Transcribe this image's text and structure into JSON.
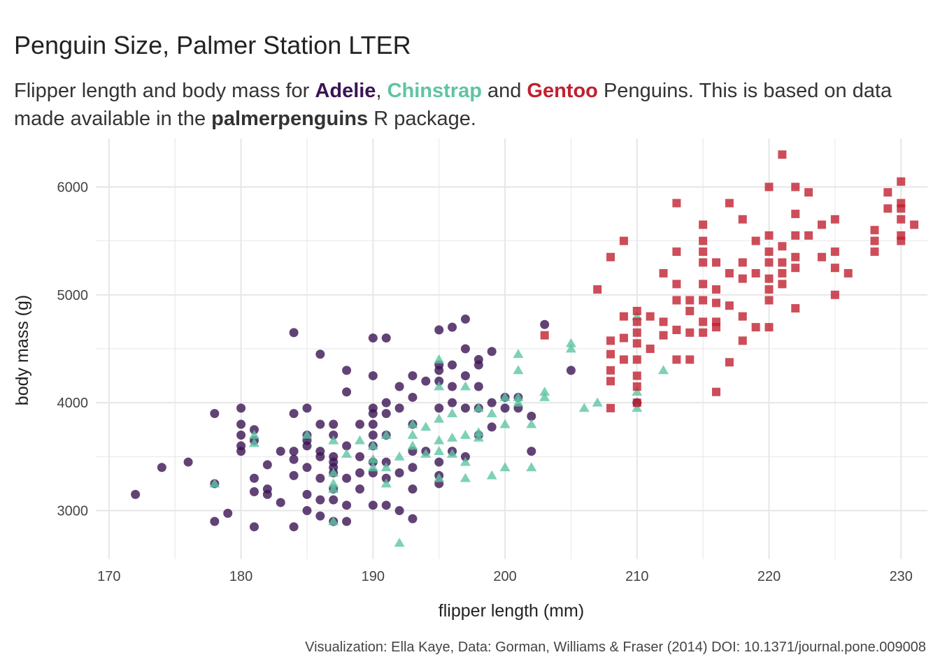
{
  "title": "Penguin Size, Palmer Station LTER",
  "subtitle": {
    "part1": "Flipper length and body mass for ",
    "adelie": "Adelie",
    "comma": ", ",
    "chinstrap": "Chinstrap",
    "and": " and ",
    "gentoo": "Gentoo",
    "part2": " Penguins. This is based on data made available in the ",
    "package": "palmerpenguins",
    "part3": " R package."
  },
  "caption": "Visualization: Ella Kaye, Data: Gorman, Williams & Fraser (2014) DOI: 10.1371/journal.pone.009008",
  "colors": {
    "Adelie": "#3b1454",
    "Chinstrap": "#5ec4a4",
    "Gentoo": "#c1202f",
    "grid": "#e6e6e6"
  },
  "chart_data": {
    "type": "scatter",
    "title": "Penguin Size, Palmer Station LTER",
    "xlabel": "flipper length (mm)",
    "ylabel": "body mass (g)",
    "xlim": [
      169,
      232
    ],
    "ylim": [
      2550,
      6450
    ],
    "xticks": [
      170,
      180,
      190,
      200,
      210,
      220,
      230
    ],
    "yticks": [
      3000,
      4000,
      5000,
      6000
    ],
    "grid": true,
    "legend": "none (species named in subtitle)",
    "series": [
      {
        "name": "Adelie",
        "marker": "circle",
        "points": [
          [
            172,
            3150
          ],
          [
            174,
            3400
          ],
          [
            176,
            3450
          ],
          [
            178,
            3900
          ],
          [
            178,
            3250
          ],
          [
            178,
            2900
          ],
          [
            179,
            2975
          ],
          [
            180,
            3950
          ],
          [
            180,
            3800
          ],
          [
            180,
            3700
          ],
          [
            180,
            3600
          ],
          [
            180,
            3550
          ],
          [
            181,
            3750
          ],
          [
            181,
            3650
          ],
          [
            181,
            3300
          ],
          [
            181,
            3175
          ],
          [
            181,
            2850
          ],
          [
            182,
            3425
          ],
          [
            182,
            3200
          ],
          [
            182,
            3150
          ],
          [
            183,
            3550
          ],
          [
            183,
            3075
          ],
          [
            184,
            4650
          ],
          [
            184,
            3900
          ],
          [
            184,
            3550
          ],
          [
            184,
            3475
          ],
          [
            184,
            3325
          ],
          [
            184,
            2850
          ],
          [
            185,
            3950
          ],
          [
            185,
            3700
          ],
          [
            185,
            3650
          ],
          [
            185,
            3600
          ],
          [
            185,
            3400
          ],
          [
            185,
            3150
          ],
          [
            185,
            3000
          ],
          [
            186,
            4450
          ],
          [
            186,
            3800
          ],
          [
            186,
            3550
          ],
          [
            186,
            3500
          ],
          [
            186,
            3300
          ],
          [
            186,
            3100
          ],
          [
            186,
            2950
          ],
          [
            187,
            3800
          ],
          [
            187,
            3700
          ],
          [
            187,
            3500
          ],
          [
            187,
            3450
          ],
          [
            187,
            3400
          ],
          [
            187,
            3350
          ],
          [
            187,
            3200
          ],
          [
            187,
            3100
          ],
          [
            187,
            2900
          ],
          [
            188,
            4300
          ],
          [
            188,
            4100
          ],
          [
            188,
            3600
          ],
          [
            188,
            3300
          ],
          [
            188,
            3050
          ],
          [
            188,
            2900
          ],
          [
            189,
            3800
          ],
          [
            189,
            3500
          ],
          [
            189,
            3350
          ],
          [
            189,
            3200
          ],
          [
            190,
            4600
          ],
          [
            190,
            4250
          ],
          [
            190,
            3950
          ],
          [
            190,
            3900
          ],
          [
            190,
            3800
          ],
          [
            190,
            3700
          ],
          [
            190,
            3600
          ],
          [
            190,
            3450
          ],
          [
            190,
            3350
          ],
          [
            190,
            3050
          ],
          [
            191,
            4600
          ],
          [
            191,
            4000
          ],
          [
            191,
            3900
          ],
          [
            191,
            3700
          ],
          [
            191,
            3450
          ],
          [
            191,
            3300
          ],
          [
            191,
            3050
          ],
          [
            192,
            4150
          ],
          [
            192,
            3950
          ],
          [
            192,
            3350
          ],
          [
            192,
            3000
          ],
          [
            193,
            4250
          ],
          [
            193,
            4050
          ],
          [
            193,
            3800
          ],
          [
            193,
            3550
          ],
          [
            193,
            3400
          ],
          [
            193,
            3200
          ],
          [
            193,
            2925
          ],
          [
            194,
            3550
          ],
          [
            194,
            4200
          ],
          [
            195,
            4675
          ],
          [
            195,
            4300
          ],
          [
            195,
            4350
          ],
          [
            195,
            4200
          ],
          [
            195,
            3950
          ],
          [
            195,
            3450
          ],
          [
            195,
            3325
          ],
          [
            195,
            3250
          ],
          [
            196,
            4700
          ],
          [
            196,
            4350
          ],
          [
            196,
            4150
          ],
          [
            196,
            4000
          ],
          [
            196,
            3550
          ],
          [
            197,
            4775
          ],
          [
            197,
            4500
          ],
          [
            197,
            4250
          ],
          [
            197,
            3950
          ],
          [
            197,
            3500
          ],
          [
            198,
            4400
          ],
          [
            198,
            4350
          ],
          [
            198,
            4150
          ],
          [
            198,
            3950
          ],
          [
            198,
            3700
          ],
          [
            199,
            4475
          ],
          [
            199,
            3775
          ],
          [
            199,
            4000
          ],
          [
            200,
            4050
          ],
          [
            200,
            3950
          ],
          [
            201,
            4050
          ],
          [
            201,
            3950
          ],
          [
            202,
            3875
          ],
          [
            202,
            3550
          ],
          [
            203,
            4725
          ],
          [
            205,
            4300
          ],
          [
            210,
            4000
          ]
        ]
      },
      {
        "name": "Chinstrap",
        "marker": "triangle",
        "points": [
          [
            178,
            3250
          ],
          [
            181,
            3700
          ],
          [
            181,
            3625
          ],
          [
            185,
            3700
          ],
          [
            187,
            3650
          ],
          [
            187,
            3350
          ],
          [
            187,
            3200
          ],
          [
            187,
            3250
          ],
          [
            187,
            2900
          ],
          [
            188,
            3525
          ],
          [
            189,
            3650
          ],
          [
            190,
            3600
          ],
          [
            190,
            3475
          ],
          [
            190,
            3400
          ],
          [
            191,
            3700
          ],
          [
            191,
            3400
          ],
          [
            191,
            3250
          ],
          [
            192,
            3500
          ],
          [
            192,
            2700
          ],
          [
            193,
            3800
          ],
          [
            193,
            3700
          ],
          [
            193,
            3600
          ],
          [
            194,
            3775
          ],
          [
            194,
            3525
          ],
          [
            195,
            4400
          ],
          [
            195,
            4150
          ],
          [
            195,
            3850
          ],
          [
            195,
            3650
          ],
          [
            195,
            3550
          ],
          [
            195,
            3300
          ],
          [
            196,
            3900
          ],
          [
            196,
            3675
          ],
          [
            196,
            3525
          ],
          [
            197,
            4150
          ],
          [
            197,
            3700
          ],
          [
            197,
            3450
          ],
          [
            197,
            3300
          ],
          [
            198,
            3950
          ],
          [
            198,
            3725
          ],
          [
            198,
            3675
          ],
          [
            199,
            3900
          ],
          [
            199,
            3325
          ],
          [
            200,
            4050
          ],
          [
            200,
            3800
          ],
          [
            200,
            3400
          ],
          [
            201,
            4450
          ],
          [
            201,
            4300
          ],
          [
            201,
            4050
          ],
          [
            201,
            4000
          ],
          [
            202,
            3800
          ],
          [
            202,
            3400
          ],
          [
            203,
            4100
          ],
          [
            203,
            4050
          ],
          [
            205,
            4550
          ],
          [
            205,
            4500
          ],
          [
            206,
            3950
          ],
          [
            207,
            4000
          ],
          [
            210,
            4800
          ],
          [
            210,
            4100
          ],
          [
            210,
            3950
          ],
          [
            212,
            4300
          ]
        ]
      },
      {
        "name": "Gentoo",
        "marker": "square",
        "points": [
          [
            203,
            4625
          ],
          [
            207,
            5050
          ],
          [
            208,
            5350
          ],
          [
            208,
            4575
          ],
          [
            208,
            4450
          ],
          [
            208,
            4300
          ],
          [
            208,
            4200
          ],
          [
            208,
            3950
          ],
          [
            209,
            5500
          ],
          [
            209,
            4800
          ],
          [
            209,
            4600
          ],
          [
            209,
            4400
          ],
          [
            210,
            4850
          ],
          [
            210,
            4750
          ],
          [
            210,
            4650
          ],
          [
            210,
            4550
          ],
          [
            210,
            4400
          ],
          [
            210,
            4250
          ],
          [
            210,
            4150
          ],
          [
            210,
            4000
          ],
          [
            211,
            4800
          ],
          [
            211,
            4500
          ],
          [
            212,
            5200
          ],
          [
            212,
            4750
          ],
          [
            212,
            4625
          ],
          [
            213,
            5850
          ],
          [
            213,
            5400
          ],
          [
            213,
            5100
          ],
          [
            213,
            4950
          ],
          [
            213,
            4675
          ],
          [
            213,
            4400
          ],
          [
            214,
            4950
          ],
          [
            214,
            4850
          ],
          [
            214,
            4650
          ],
          [
            214,
            4400
          ],
          [
            215,
            5650
          ],
          [
            215,
            5500
          ],
          [
            215,
            5400
          ],
          [
            215,
            5300
          ],
          [
            215,
            5100
          ],
          [
            215,
            4950
          ],
          [
            215,
            4750
          ],
          [
            215,
            4650
          ],
          [
            216,
            5300
          ],
          [
            216,
            5050
          ],
          [
            216,
            4925
          ],
          [
            216,
            4750
          ],
          [
            216,
            4700
          ],
          [
            216,
            4100
          ],
          [
            217,
            5850
          ],
          [
            217,
            5200
          ],
          [
            217,
            4900
          ],
          [
            217,
            4375
          ],
          [
            218,
            5700
          ],
          [
            218,
            5300
          ],
          [
            218,
            5150
          ],
          [
            218,
            4800
          ],
          [
            218,
            4575
          ],
          [
            219,
            5500
          ],
          [
            219,
            5200
          ],
          [
            219,
            4700
          ],
          [
            220,
            6000
          ],
          [
            220,
            5550
          ],
          [
            220,
            5400
          ],
          [
            220,
            5300
          ],
          [
            220,
            5150
          ],
          [
            220,
            5050
          ],
          [
            220,
            4950
          ],
          [
            220,
            4700
          ],
          [
            221,
            6300
          ],
          [
            221,
            5450
          ],
          [
            221,
            5300
          ],
          [
            221,
            5200
          ],
          [
            221,
            5100
          ],
          [
            222,
            6000
          ],
          [
            222,
            5750
          ],
          [
            222,
            5550
          ],
          [
            222,
            5350
          ],
          [
            222,
            5250
          ],
          [
            222,
            4875
          ],
          [
            223,
            5950
          ],
          [
            223,
            5550
          ],
          [
            224,
            5650
          ],
          [
            224,
            5350
          ],
          [
            225,
            5700
          ],
          [
            225,
            5400
          ],
          [
            225,
            5250
          ],
          [
            225,
            5000
          ],
          [
            226,
            5200
          ],
          [
            228,
            5600
          ],
          [
            228,
            5500
          ],
          [
            228,
            5400
          ],
          [
            229,
            5950
          ],
          [
            229,
            5800
          ],
          [
            230,
            6050
          ],
          [
            230,
            5850
          ],
          [
            230,
            5800
          ],
          [
            230,
            5700
          ],
          [
            230,
            5550
          ],
          [
            230,
            5500
          ],
          [
            231,
            5650
          ]
        ]
      }
    ]
  }
}
